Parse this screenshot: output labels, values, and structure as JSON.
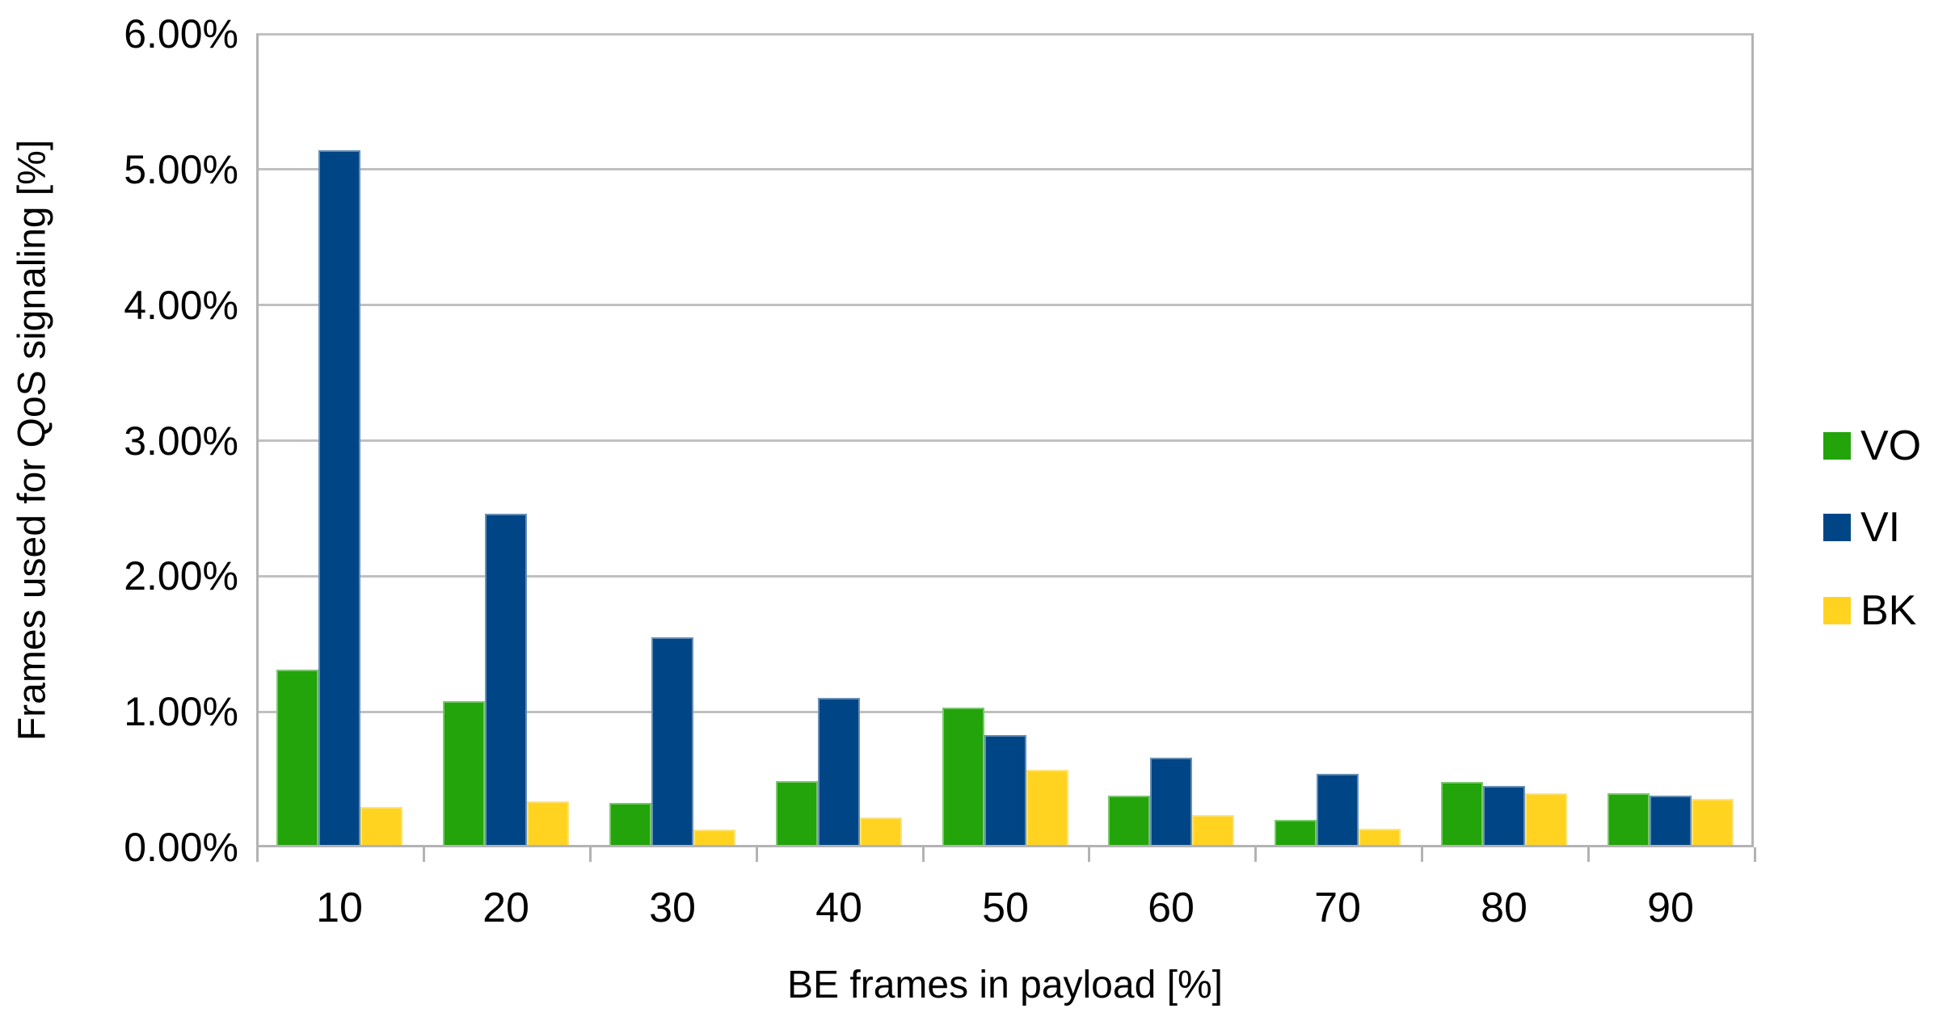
{
  "chart_data": {
    "type": "bar",
    "title": "",
    "xlabel": "BE frames in payload [%]",
    "ylabel": "Frames used for QoS signaling [%]",
    "categories": [
      "10",
      "20",
      "30",
      "40",
      "50",
      "60",
      "70",
      "80",
      "90"
    ],
    "series": [
      {
        "name": "VO",
        "color": "#22A40A",
        "values": [
          1.31,
          1.08,
          0.33,
          0.49,
          1.03,
          0.38,
          0.2,
          0.48,
          0.4
        ]
      },
      {
        "name": "VI",
        "color": "#004586",
        "values": [
          5.14,
          2.46,
          1.55,
          1.1,
          0.83,
          0.66,
          0.54,
          0.45,
          0.38
        ]
      },
      {
        "name": "BK",
        "color": "#FFD320",
        "values": [
          0.3,
          0.34,
          0.13,
          0.22,
          0.57,
          0.24,
          0.14,
          0.4,
          0.36
        ]
      }
    ],
    "y_ticks": [
      "0.00%",
      "1.00%",
      "2.00%",
      "3.00%",
      "4.00%",
      "5.00%",
      "6.00%"
    ],
    "ylim": [
      0,
      6
    ],
    "grid": true,
    "legend_position": "right",
    "colors": {
      "grid": "#C0C0C0",
      "axis": "#B3B3B3",
      "text": "#000000",
      "background": "#FFFFFF"
    }
  }
}
